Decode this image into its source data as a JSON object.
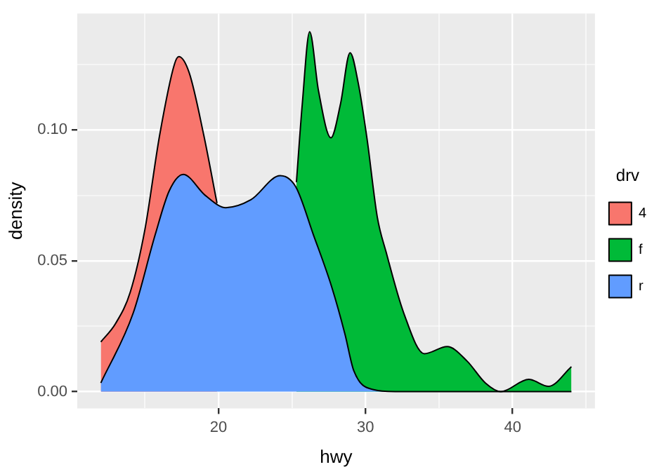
{
  "chart_data": {
    "type": "area",
    "xlabel": "hwy",
    "ylabel": "density",
    "legend_title": "drv",
    "legend": "right",
    "grid": true,
    "xlim": [
      10.4,
      45.6
    ],
    "ylim": [
      -0.0064,
      0.1445
    ],
    "xticks": [
      {
        "value": 15,
        "label": null
      },
      20,
      {
        "value": 25,
        "label": null
      },
      30,
      {
        "value": 35,
        "label": null
      },
      40,
      {
        "value": 45,
        "label": null
      }
    ],
    "yticks": [
      {
        "value": 0,
        "label": "0.00"
      },
      {
        "value": 0.025,
        "label": null
      },
      {
        "value": 0.05,
        "label": "0.05"
      },
      {
        "value": 0.075,
        "label": null
      },
      {
        "value": 0.1,
        "label": "0.10"
      },
      {
        "value": 0.125,
        "label": null
      }
    ],
    "series": [
      {
        "name": "4",
        "color": "#f8766d",
        "x": [
          12,
          13,
          14,
          15,
          16,
          17,
          17.3,
          18,
          19,
          19.9
        ],
        "values": [
          0.019,
          0.026,
          0.038,
          0.062,
          0.098,
          0.125,
          0.128,
          0.122,
          0.098,
          0.072
        ]
      },
      {
        "name": "f",
        "color": "#00ba38",
        "x": [
          25.3,
          25.7,
          26.2,
          26.8,
          27.65,
          28.3,
          28.95,
          29.5,
          30.1,
          30.8,
          31.4,
          32.6,
          34,
          35.55,
          36.9,
          38.15,
          39.2,
          41.1,
          42.45,
          44
        ],
        "values": [
          0.08,
          0.11,
          0.1375,
          0.115,
          0.097,
          0.11,
          0.1295,
          0.118,
          0.0967,
          0.0667,
          0.0533,
          0.03,
          0.0145,
          0.0172,
          0.0117,
          0.0033,
          0,
          0.0047,
          0.002,
          0.0095
        ]
      },
      {
        "name": "r",
        "color": "#619cff",
        "x": [
          12,
          14.2,
          15.7,
          16.65,
          17.6,
          19.1,
          20.5,
          22.2,
          24.2,
          25.25,
          26.45,
          27.7,
          28.6,
          29.2,
          30.5,
          32,
          44
        ],
        "values": [
          0.0033,
          0.03,
          0.06,
          0.0767,
          0.083,
          0.075,
          0.0703,
          0.0733,
          0.0825,
          0.0783,
          0.06,
          0.04,
          0.022,
          0.008,
          0.0008,
          0,
          0
        ]
      }
    ]
  }
}
